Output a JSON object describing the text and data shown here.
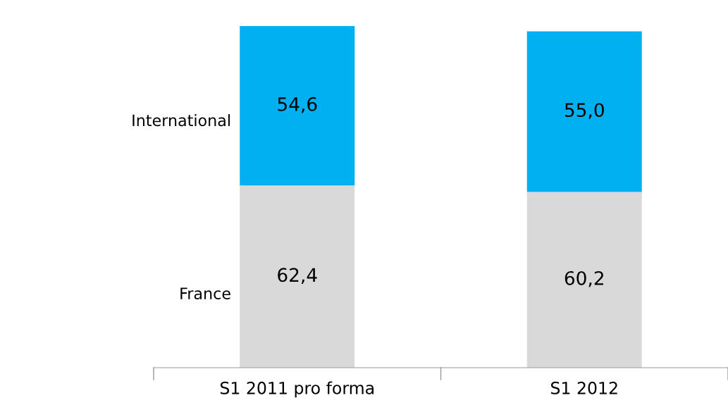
{
  "chart_data": {
    "type": "bar",
    "stacked": true,
    "legend": false,
    "grid": false,
    "categories": [
      "S1 2011 pro forma",
      "S1 2012"
    ],
    "series": [
      {
        "name": "France",
        "color": "#d9d9d9",
        "values": [
          62.4,
          60.2
        ],
        "value_labels": [
          "62,4",
          "60,2"
        ]
      },
      {
        "name": "International",
        "color": "#00b0f0",
        "values": [
          54.6,
          55.0
        ],
        "value_labels": [
          "54,6",
          "55,0"
        ]
      }
    ]
  }
}
